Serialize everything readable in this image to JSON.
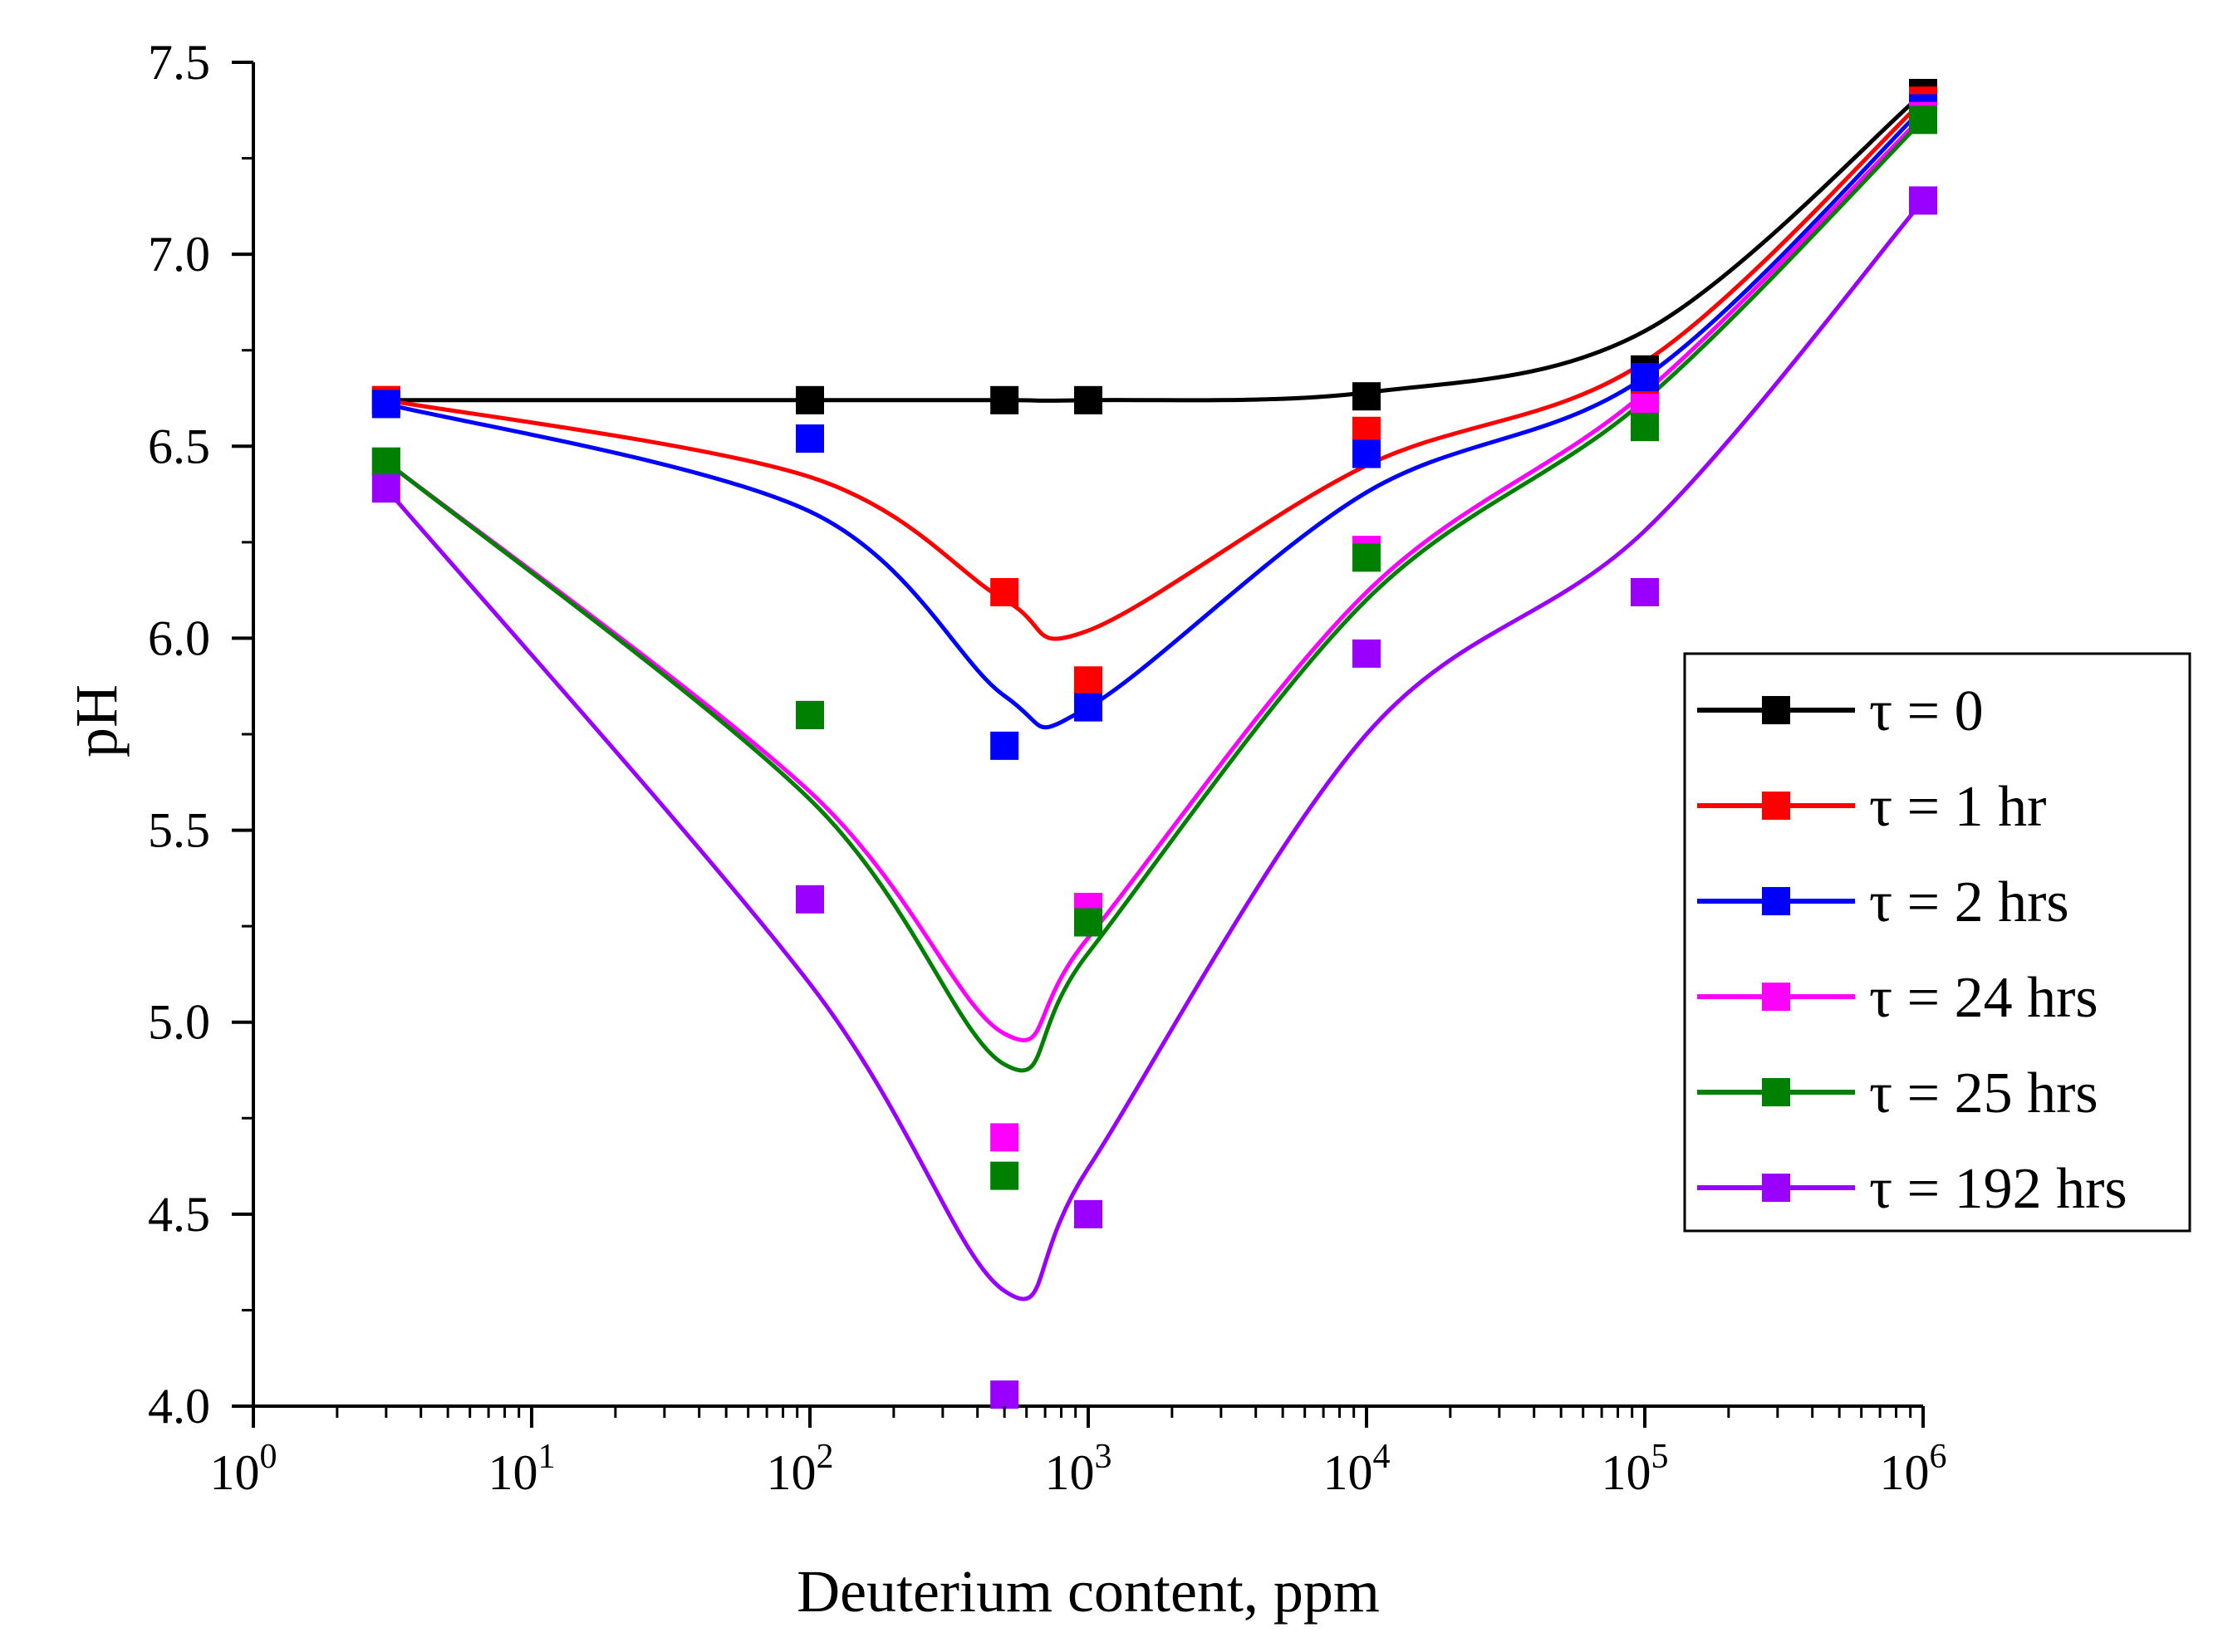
{
  "chart_data": {
    "type": "scatter",
    "title": "",
    "xlabel": "Deuterium content, ppm",
    "ylabel": "pH",
    "xscale": "log",
    "xlim": [
      1,
      1000000
    ],
    "ylim": [
      4.0,
      7.5
    ],
    "x_tick_labels": [
      {
        "base": "10",
        "exp": "0",
        "value": 1
      },
      {
        "base": "10",
        "exp": "1",
        "value": 10
      },
      {
        "base": "10",
        "exp": "2",
        "value": 100
      },
      {
        "base": "10",
        "exp": "3",
        "value": 1000
      },
      {
        "base": "10",
        "exp": "4",
        "value": 10000
      },
      {
        "base": "10",
        "exp": "5",
        "value": 100000
      },
      {
        "base": "10",
        "exp": "6",
        "value": 1000000
      }
    ],
    "y_tick_labels": [
      "4.0",
      "4.5",
      "5.0",
      "5.5",
      "6.0",
      "6.5",
      "7.0",
      "7.5"
    ],
    "legend_position": "right",
    "x": [
      3,
      100,
      500,
      1000,
      10000,
      100000,
      1000000
    ],
    "series": [
      {
        "name": "τ = 0",
        "color": "#000000",
        "values": [
          6.62,
          6.62,
          6.62,
          6.62,
          6.63,
          6.7,
          7.42
        ],
        "fit": [
          6.62,
          6.62,
          6.62,
          6.62,
          6.64,
          6.8,
          7.42
        ]
      },
      {
        "name": "τ = 1 hr",
        "color": "#ff0000",
        "values": [
          6.62,
          6.52,
          6.12,
          5.89,
          6.54,
          6.66,
          7.4
        ],
        "fit": [
          6.62,
          6.42,
          6.1,
          6.02,
          6.45,
          6.72,
          7.4
        ]
      },
      {
        "name": "τ = 2 hrs",
        "color": "#0000ff",
        "values": [
          6.61,
          6.52,
          5.72,
          5.82,
          6.48,
          6.68,
          7.38
        ],
        "fit": [
          6.61,
          6.33,
          5.85,
          5.82,
          6.38,
          6.68,
          7.38
        ]
      },
      {
        "name": "τ = 24 hrs",
        "color": "#ff00ff",
        "values": [
          6.46,
          5.8,
          4.7,
          5.3,
          6.23,
          6.6,
          7.36
        ],
        "fit": [
          6.46,
          5.6,
          4.97,
          5.22,
          6.12,
          6.64,
          7.36
        ]
      },
      {
        "name": "τ = 25 hrs",
        "color": "#008000",
        "values": [
          6.46,
          5.8,
          4.6,
          5.26,
          6.21,
          6.55,
          7.35
        ],
        "fit": [
          6.46,
          5.58,
          4.89,
          5.18,
          6.1,
          6.62,
          7.35
        ]
      },
      {
        "name": "τ = 192 hrs",
        "color": "#9900ff",
        "values": [
          6.39,
          5.32,
          4.03,
          4.5,
          5.96,
          6.12,
          7.14
        ],
        "fit": [
          6.39,
          5.1,
          4.3,
          4.62,
          5.75,
          6.28,
          7.14
        ]
      }
    ]
  }
}
